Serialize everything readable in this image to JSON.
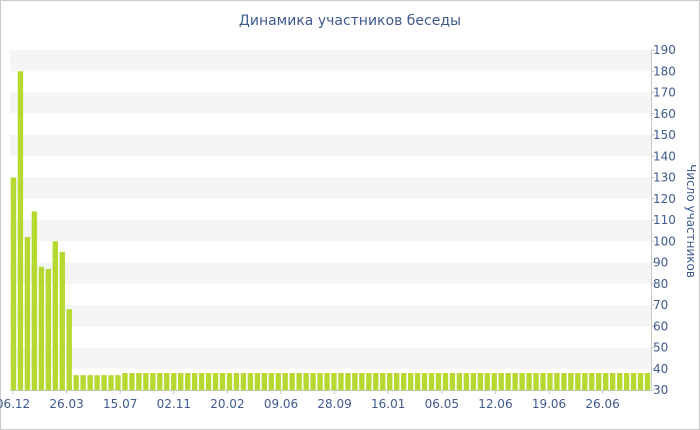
{
  "chart_data": {
    "type": "bar",
    "title": "Динамика участников беседы",
    "ylabel": "Число участников",
    "xlabel": "",
    "ylim": [
      30,
      190
    ],
    "yticks": [
      30,
      40,
      50,
      60,
      70,
      80,
      90,
      100,
      110,
      120,
      130,
      140,
      150,
      160,
      170,
      180,
      190
    ],
    "y_axis_side": "right",
    "grid": "horizontal bands",
    "bar_color": "#b5d930",
    "xtick_labels": [
      "06.12",
      "26.03",
      "15.07",
      "02.11",
      "20.02",
      "09.06",
      "28.09",
      "16.01",
      "06.05",
      "12.06",
      "19.06",
      "26.06"
    ],
    "values": [
      130,
      180,
      102,
      114,
      88,
      87,
      100,
      95,
      68,
      37,
      37,
      37,
      37,
      37,
      37,
      37,
      38,
      38,
      38,
      38,
      38,
      38,
      38,
      38,
      38,
      38,
      38,
      38,
      38,
      38,
      38,
      38,
      38,
      38,
      38,
      38,
      38,
      38,
      38,
      38,
      38,
      38,
      38,
      38,
      38,
      38,
      38,
      38,
      38,
      38,
      38,
      38,
      38,
      38,
      38,
      38,
      38,
      38,
      38,
      38,
      38,
      38,
      38,
      38,
      38,
      38,
      38,
      38,
      38,
      38,
      38,
      38,
      38,
      38,
      38,
      38,
      38,
      38,
      38,
      38,
      38,
      38,
      38,
      38,
      38,
      38,
      38,
      38,
      38,
      38,
      38,
      38
    ]
  }
}
